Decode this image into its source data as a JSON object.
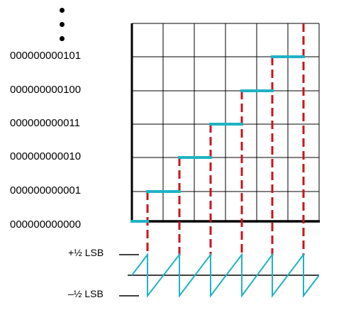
{
  "diagram": {
    "code_labels": [
      "000000000101",
      "000000000100",
      "000000000011",
      "000000000010",
      "000000000001",
      "000000000000"
    ],
    "continuation_symbol": "⋮",
    "error_labels": {
      "plus_half": "+½ LSB",
      "minus_half": "–½ LSB"
    },
    "colors": {
      "steps": "#1fb3c4",
      "transition_lines": "#c8141c",
      "grid": "#000000",
      "sawtooth": "#1fb3c4"
    },
    "step_count": 6
  }
}
